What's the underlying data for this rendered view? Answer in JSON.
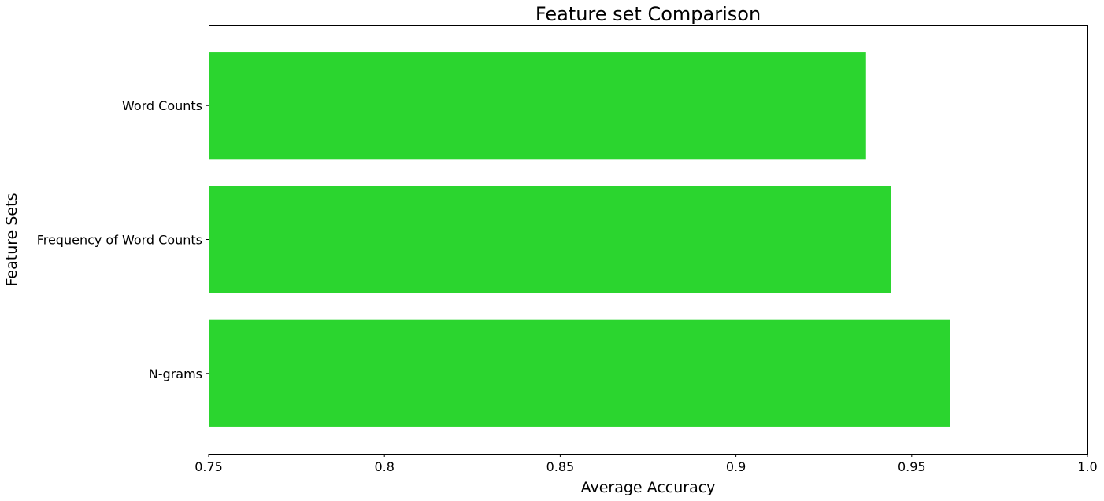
{
  "chart_data": {
    "type": "bar",
    "orientation": "horizontal",
    "title": "Feature set Comparison",
    "xlabel": "Average Accuracy",
    "ylabel": "Feature Sets",
    "categories": [
      "N-grams",
      "Frequency of Word Counts",
      "Word Counts"
    ],
    "values": [
      0.961,
      0.944,
      0.937
    ],
    "xlim": [
      0.75,
      1.0
    ],
    "xticks": [
      0.75,
      0.8,
      0.85,
      0.9,
      0.95,
      1.0
    ],
    "xtick_labels": [
      "0.75",
      "0.8",
      "0.85",
      "0.9",
      "0.95",
      "1.0"
    ],
    "bar_color": "#2bd52f",
    "grid": false,
    "legend": "none"
  }
}
